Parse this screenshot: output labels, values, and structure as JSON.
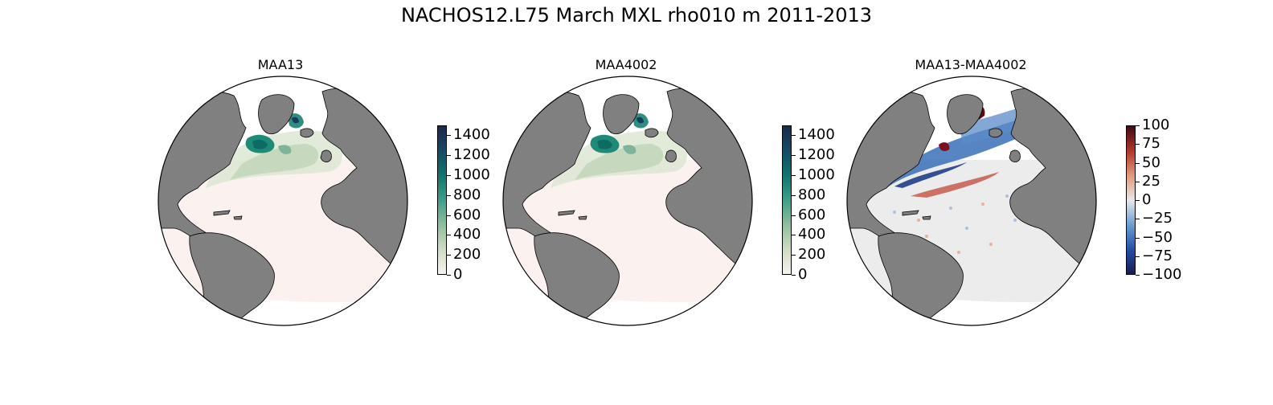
{
  "title": "NACHOS12.L75 March MXL rho010 m 2011-2013",
  "colors": {
    "land": "#808080",
    "ocean_base": "#fbf1ee",
    "diff_base": "#ececec",
    "outline": "#000000"
  },
  "panels": [
    {
      "title": "MAA13",
      "colormap": "white-green-navy",
      "colorbar": {
        "ticks": [
          "1400",
          "1200",
          "1000",
          "800",
          "600",
          "400",
          "200",
          "0"
        ],
        "min": 0,
        "max": 1500,
        "stops": [
          "#f7f3ef",
          "#cfdcc4",
          "#8fbf9c",
          "#3f9e8a",
          "#11756d",
          "#154a66",
          "#1b2a4a"
        ]
      }
    },
    {
      "title": "MAA4002",
      "colormap": "white-green-navy",
      "colorbar": {
        "ticks": [
          "1400",
          "1200",
          "1000",
          "800",
          "600",
          "400",
          "200",
          "0"
        ],
        "min": 0,
        "max": 1500,
        "stops": [
          "#f7f3ef",
          "#cfdcc4",
          "#8fbf9c",
          "#3f9e8a",
          "#11756d",
          "#154a66",
          "#1b2a4a"
        ]
      }
    },
    {
      "title": "MAA13-MAA4002",
      "colormap": "diverging-blue-red",
      "colorbar": {
        "ticks": [
          "100",
          "75",
          "50",
          "25",
          "0",
          "−25",
          "−50",
          "−75",
          "−100"
        ],
        "min": -100,
        "max": 100,
        "stops": [
          "#1b1c4e",
          "#2350a8",
          "#6a9fcf",
          "#e8e8e8",
          "#e19a7a",
          "#b2352a",
          "#3f0a12"
        ]
      }
    }
  ]
}
